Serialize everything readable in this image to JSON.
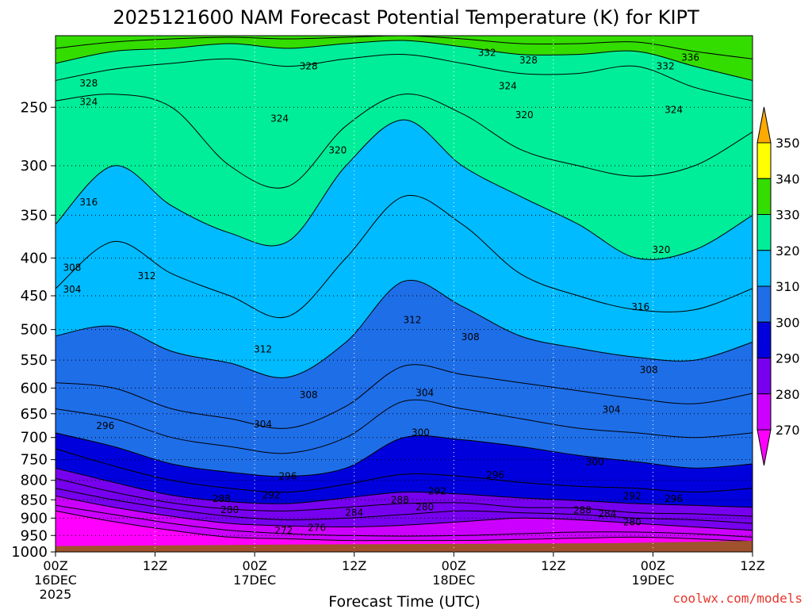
{
  "chart_data": {
    "type": "heatmap",
    "title": "2025121600 NAM Forecast Potential Temperature (K) for KIPT",
    "xlabel": "Forecast Time (UTC)",
    "ylabel": "",
    "x_unit": "forecast hours",
    "xlim": [
      0,
      84
    ],
    "ylim_hpa": [
      200,
      1000
    ],
    "x_ticks": [
      {
        "hour": 0,
        "label": "00Z",
        "sub": "16DEC",
        "sub2": "2025"
      },
      {
        "hour": 12,
        "label": "12Z",
        "sub": "",
        "sub2": ""
      },
      {
        "hour": 24,
        "label": "00Z",
        "sub": "17DEC",
        "sub2": ""
      },
      {
        "hour": 36,
        "label": "12Z",
        "sub": "",
        "sub2": ""
      },
      {
        "hour": 48,
        "label": "00Z",
        "sub": "18DEC",
        "sub2": ""
      },
      {
        "hour": 60,
        "label": "12Z",
        "sub": "",
        "sub2": ""
      },
      {
        "hour": 72,
        "label": "00Z",
        "sub": "19DEC",
        "sub2": ""
      },
      {
        "hour": 84,
        "label": "12Z",
        "sub": "",
        "sub2": ""
      }
    ],
    "y_ticks": [
      250,
      300,
      350,
      400,
      450,
      500,
      550,
      600,
      650,
      700,
      750,
      800,
      850,
      900,
      950,
      1000
    ],
    "colorbar": {
      "levels": [
        270,
        280,
        290,
        300,
        310,
        320,
        330,
        340,
        350
      ],
      "labels": [
        "270",
        "280",
        "290",
        "300",
        "310",
        "320",
        "330",
        "340",
        "350"
      ],
      "colors": [
        "#ff00ff",
        "#cc00ff",
        "#7700ee",
        "#0000dd",
        "#1e6ee8",
        "#00bbff",
        "#00ee99",
        "#33dd00",
        "#ffff00",
        "#ffaa00"
      ]
    },
    "contour_interval_K": 2,
    "contours": [
      {
        "level": 272,
        "p": [
          880,
          910,
          935,
          955,
          960,
          965,
          965,
          965,
          962,
          958,
          955,
          960,
          968
        ]
      },
      {
        "level": 276,
        "p": [
          865,
          890,
          915,
          935,
          945,
          950,
          952,
          950,
          945,
          940,
          940,
          945,
          955
        ]
      },
      {
        "level": 280,
        "p": [
          840,
          870,
          895,
          915,
          922,
          925,
          920,
          910,
          900,
          905,
          915,
          925,
          935
        ]
      },
      {
        "level": 284,
        "p": [
          820,
          850,
          875,
          895,
          905,
          900,
          890,
          880,
          885,
          890,
          900,
          905,
          915
        ]
      },
      {
        "level": 288,
        "p": [
          795,
          830,
          858,
          875,
          880,
          870,
          860,
          858,
          870,
          872,
          885,
          888,
          895
        ]
      },
      {
        "level": 292,
        "p": [
          770,
          805,
          838,
          855,
          860,
          845,
          830,
          835,
          845,
          852,
          860,
          865,
          870
        ]
      },
      {
        "level": 296,
        "p": [
          725,
          765,
          800,
          820,
          830,
          810,
          785,
          790,
          805,
          815,
          820,
          830,
          820
        ]
      },
      {
        "level": 300,
        "p": [
          690,
          720,
          760,
          780,
          790,
          770,
          700,
          705,
          720,
          740,
          755,
          770,
          760
        ]
      },
      {
        "level": 304,
        "p": [
          640,
          660,
          700,
          720,
          735,
          700,
          625,
          640,
          660,
          680,
          690,
          700,
          690
        ]
      },
      {
        "level": 308,
        "p": [
          590,
          600,
          640,
          660,
          680,
          635,
          560,
          575,
          590,
          605,
          620,
          630,
          610
        ]
      },
      {
        "level": 312,
        "p": [
          510,
          495,
          535,
          555,
          580,
          520,
          430,
          465,
          510,
          530,
          545,
          550,
          520
        ]
      },
      {
        "level": 316,
        "p": [
          440,
          380,
          420,
          450,
          480,
          400,
          330,
          360,
          420,
          450,
          470,
          470,
          440
        ]
      },
      {
        "level": 320,
        "p": [
          360,
          300,
          340,
          370,
          380,
          300,
          260,
          300,
          330,
          360,
          400,
          390,
          350
        ]
      },
      {
        "level": 324,
        "p": [
          245,
          240,
          250,
          300,
          320,
          265,
          240,
          255,
          285,
          300,
          310,
          300,
          270
        ]
      },
      {
        "level": 328,
        "p": [
          230,
          222,
          218,
          215,
          220,
          215,
          212,
          218,
          225,
          225,
          220,
          235,
          245
        ]
      },
      {
        "level": 332,
        "p": [
          218,
          210,
          208,
          205,
          208,
          205,
          203,
          207,
          212,
          212,
          210,
          220,
          230
        ]
      },
      {
        "level": 336,
        "p": [
          208,
          204,
          202,
          201,
          202,
          201,
          200,
          202,
          205,
          205,
          204,
          210,
          215
        ]
      }
    ],
    "contour_hours": [
      0,
      7,
      14,
      21,
      28,
      35,
      42,
      49,
      56,
      63,
      70,
      77,
      84
    ],
    "contour_labels": [
      {
        "text": "328",
        "hour": 4,
        "p": 232
      },
      {
        "text": "324",
        "hour": 4,
        "p": 246
      },
      {
        "text": "328",
        "hour": 30.5,
        "p": 220
      },
      {
        "text": "324",
        "hour": 27,
        "p": 259
      },
      {
        "text": "332",
        "hour": 52,
        "p": 211
      },
      {
        "text": "328",
        "hour": 57,
        "p": 216
      },
      {
        "text": "324",
        "hour": 54.5,
        "p": 234
      },
      {
        "text": "320",
        "hour": 56.5,
        "p": 256
      },
      {
        "text": "332",
        "hour": 73.5,
        "p": 220
      },
      {
        "text": "336",
        "hour": 76.5,
        "p": 214
      },
      {
        "text": "324",
        "hour": 74.5,
        "p": 252
      },
      {
        "text": "320",
        "hour": 34,
        "p": 286
      },
      {
        "text": "316",
        "hour": 4,
        "p": 336
      },
      {
        "text": "320",
        "hour": 73,
        "p": 390
      },
      {
        "text": "308",
        "hour": 2,
        "p": 412
      },
      {
        "text": "312",
        "hour": 11,
        "p": 423
      },
      {
        "text": "304",
        "hour": 2,
        "p": 441
      },
      {
        "text": "316",
        "hour": 70.5,
        "p": 466
      },
      {
        "text": "312",
        "hour": 43,
        "p": 485
      },
      {
        "text": "308",
        "hour": 50,
        "p": 512
      },
      {
        "text": "312",
        "hour": 25,
        "p": 532
      },
      {
        "text": "308",
        "hour": 71.5,
        "p": 567
      },
      {
        "text": "304",
        "hour": 44.5,
        "p": 609
      },
      {
        "text": "308",
        "hour": 30.5,
        "p": 613
      },
      {
        "text": "304",
        "hour": 67,
        "p": 642
      },
      {
        "text": "304",
        "hour": 25,
        "p": 672
      },
      {
        "text": "296",
        "hour": 6,
        "p": 675
      },
      {
        "text": "300",
        "hour": 44,
        "p": 689
      },
      {
        "text": "300",
        "hour": 65,
        "p": 755
      },
      {
        "text": "296",
        "hour": 28,
        "p": 790
      },
      {
        "text": "296",
        "hour": 53,
        "p": 787
      },
      {
        "text": "292",
        "hour": 26,
        "p": 838
      },
      {
        "text": "292",
        "hour": 46,
        "p": 828
      },
      {
        "text": "292",
        "hour": 69.5,
        "p": 840
      },
      {
        "text": "296",
        "hour": 74.5,
        "p": 847
      },
      {
        "text": "288",
        "hour": 20,
        "p": 847
      },
      {
        "text": "288",
        "hour": 41.5,
        "p": 851
      },
      {
        "text": "280",
        "hour": 21,
        "p": 877
      },
      {
        "text": "280",
        "hour": 44.5,
        "p": 870
      },
      {
        "text": "284",
        "hour": 36,
        "p": 885
      },
      {
        "text": "288",
        "hour": 63.5,
        "p": 878
      },
      {
        "text": "284",
        "hour": 66.5,
        "p": 888
      },
      {
        "text": "280",
        "hour": 69.5,
        "p": 912
      },
      {
        "text": "272",
        "hour": 27.5,
        "p": 936
      },
      {
        "text": "276",
        "hour": 31.5,
        "p": 927
      }
    ],
    "terrain": {
      "label": "ground (below surface)",
      "color": "#a0522d",
      "surface_hpa_start": 982,
      "surface_hpa_end": 966
    }
  },
  "credit": "coolwx.com/models"
}
